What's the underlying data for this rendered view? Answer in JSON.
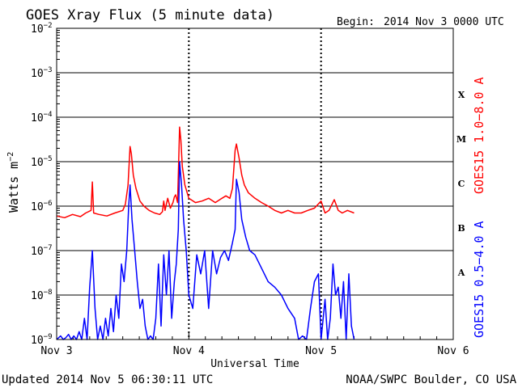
{
  "chart_data": {
    "type": "line",
    "title": "GOES Xray Flux (5 minute data)",
    "begin_label": "Begin:",
    "begin_value": "2014 Nov 3 0000 UTC",
    "ylabel_main": "Watts m",
    "ylabel_sup": "−2",
    "xlabel": "Universal Time",
    "x_tick_labels": [
      "Nov 3",
      "Nov 4",
      "Nov 5",
      "Nov 6"
    ],
    "xlim": [
      "2014-11-03",
      "2014-11-06"
    ],
    "y_scale": "log",
    "ylim": [
      1e-09,
      0.01
    ],
    "y_ticks": [
      {
        "value": 0.01,
        "base": "10",
        "exp": "−2"
      },
      {
        "value": 0.001,
        "base": "10",
        "exp": "−3"
      },
      {
        "value": 0.0001,
        "base": "10",
        "exp": "−4"
      },
      {
        "value": 1e-05,
        "base": "10",
        "exp": "−5"
      },
      {
        "value": 1e-06,
        "base": "10",
        "exp": "−6"
      },
      {
        "value": 1e-07,
        "base": "10",
        "exp": "−7"
      },
      {
        "value": 1e-08,
        "base": "10",
        "exp": "−8"
      },
      {
        "value": 1e-09,
        "base": "10",
        "exp": "−9"
      }
    ],
    "flare_classes": [
      {
        "label": "X",
        "value": 0.00032
      },
      {
        "label": "M",
        "value": 3.2e-05
      },
      {
        "label": "C",
        "value": 3.2e-06
      },
      {
        "label": "B",
        "value": 3.2e-07
      },
      {
        "label": "A",
        "value": 3.2e-08
      }
    ],
    "grid": "horizontal lines at each decade; dashed verticals at day boundaries",
    "series": [
      {
        "name": "GOES15 1.0−8.0 A",
        "color": "#ff0000",
        "x_days": [
          0.0,
          0.06,
          0.12,
          0.18,
          0.22,
          0.26,
          0.27,
          0.28,
          0.32,
          0.38,
          0.44,
          0.5,
          0.52,
          0.54,
          0.555,
          0.565,
          0.58,
          0.6,
          0.63,
          0.66,
          0.7,
          0.74,
          0.78,
          0.8,
          0.81,
          0.82,
          0.84,
          0.86,
          0.88,
          0.89,
          0.9,
          0.915,
          0.93,
          0.94,
          0.95,
          0.97,
          1.0,
          1.05,
          1.1,
          1.15,
          1.2,
          1.25,
          1.28,
          1.31,
          1.33,
          1.35,
          1.36,
          1.38,
          1.4,
          1.42,
          1.45,
          1.5,
          1.55,
          1.6,
          1.65,
          1.7,
          1.75,
          1.8,
          1.85,
          1.9,
          1.95,
          2.0,
          2.03,
          2.06,
          2.1,
          2.13,
          2.16,
          2.2,
          2.25
        ],
        "values": [
          6e-07,
          5.5e-07,
          6.5e-07,
          5.8e-07,
          7e-07,
          8e-07,
          3.5e-06,
          7e-07,
          6.5e-07,
          6e-07,
          7e-07,
          8e-07,
          1.1e-06,
          3e-06,
          2.2e-05,
          1.5e-05,
          5e-06,
          2.5e-06,
          1.3e-06,
          1e-06,
          8e-07,
          7e-07,
          6.5e-07,
          7.5e-07,
          1.3e-06,
          8e-07,
          1.5e-06,
          9e-07,
          1.2e-06,
          1.6e-06,
          1.8e-06,
          1.2e-06,
          6e-05,
          3e-05,
          8e-06,
          3e-06,
          1.5e-06,
          1.2e-06,
          1.3e-06,
          1.5e-06,
          1.2e-06,
          1.5e-06,
          1.7e-06,
          1.5e-06,
          2.5e-06,
          1.8e-05,
          2.5e-05,
          1.2e-05,
          5e-06,
          3e-06,
          2e-06,
          1.5e-06,
          1.2e-06,
          1e-06,
          8e-07,
          7e-07,
          8e-07,
          7e-07,
          7e-07,
          8e-07,
          9e-07,
          1.3e-06,
          7e-07,
          8e-07,
          1.4e-06,
          8e-07,
          7e-07,
          8e-07,
          7e-07
        ]
      },
      {
        "name": "GOES15 0.5−4.0 A",
        "color": "#0000ff",
        "x_days": [
          0.0,
          0.03,
          0.05,
          0.07,
          0.09,
          0.11,
          0.13,
          0.15,
          0.17,
          0.19,
          0.21,
          0.23,
          0.25,
          0.27,
          0.29,
          0.31,
          0.33,
          0.35,
          0.37,
          0.39,
          0.41,
          0.43,
          0.45,
          0.47,
          0.49,
          0.51,
          0.53,
          0.545,
          0.555,
          0.57,
          0.59,
          0.61,
          0.63,
          0.65,
          0.67,
          0.69,
          0.71,
          0.73,
          0.75,
          0.77,
          0.79,
          0.81,
          0.83,
          0.85,
          0.87,
          0.89,
          0.905,
          0.92,
          0.93,
          0.945,
          0.96,
          0.98,
          1.0,
          1.03,
          1.06,
          1.09,
          1.12,
          1.15,
          1.18,
          1.21,
          1.24,
          1.27,
          1.3,
          1.33,
          1.35,
          1.36,
          1.38,
          1.4,
          1.43,
          1.46,
          1.5,
          1.55,
          1.6,
          1.65,
          1.7,
          1.75,
          1.8,
          1.83,
          1.86,
          1.89,
          1.92,
          1.95,
          1.98,
          2.0,
          2.03,
          2.05,
          2.07,
          2.09,
          2.11,
          2.13,
          2.15,
          2.17,
          2.19,
          2.21,
          2.23,
          2.25
        ],
        "values": [
          1e-09,
          1.2e-09,
          1e-09,
          1.1e-09,
          1.3e-09,
          1e-09,
          1.2e-09,
          1e-09,
          1.5e-09,
          1e-09,
          3e-09,
          1e-09,
          1.5e-08,
          1e-07,
          5e-09,
          1e-09,
          2e-09,
          1e-09,
          3e-09,
          1.2e-09,
          5e-09,
          1.5e-09,
          1e-08,
          3e-09,
          5e-08,
          2e-08,
          1e-07,
          1e-06,
          3e-06,
          5e-07,
          1e-07,
          2e-08,
          5e-09,
          8e-09,
          2e-09,
          1e-09,
          1.2e-09,
          1e-09,
          3e-09,
          5e-08,
          2e-09,
          8e-08,
          1e-08,
          1e-07,
          3e-09,
          2e-08,
          5e-08,
          3e-07,
          1e-05,
          3e-06,
          5e-07,
          1e-07,
          1e-08,
          5e-09,
          8e-08,
          3e-08,
          1e-07,
          5e-09,
          1e-07,
          3e-08,
          7e-08,
          1e-07,
          6e-08,
          1.5e-07,
          3e-07,
          4e-06,
          2e-06,
          5e-07,
          2e-07,
          1e-07,
          8e-08,
          4e-08,
          2e-08,
          1.5e-08,
          1e-08,
          5e-09,
          3e-09,
          1e-09,
          1.2e-09,
          1e-09,
          5e-09,
          2e-08,
          3e-08,
          1e-09,
          8e-09,
          1e-09,
          3e-09,
          5e-08,
          1e-08,
          1.5e-08,
          3e-09,
          2e-08,
          1e-09,
          3e-08,
          2e-09,
          1e-09
        ]
      }
    ]
  },
  "footer": {
    "updated": "Updated 2014 Nov  5 06:30:11 UTC",
    "source": "NOAA/SWPC Boulder, CO USA"
  }
}
